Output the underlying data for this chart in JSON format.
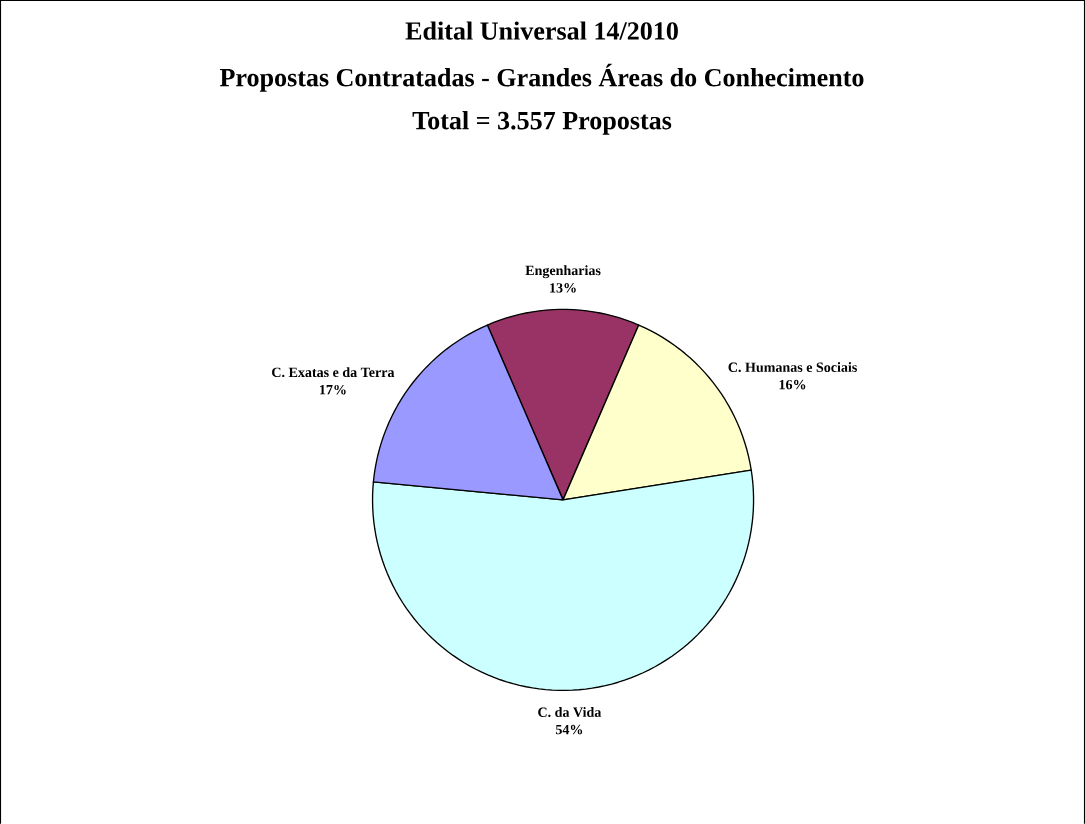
{
  "chart_data": {
    "type": "pie",
    "title": "Edital Universal 14/2010",
    "subtitle": "Propostas Contratadas - Grandes Áreas do Conhecimento",
    "annotations": [
      "Total = 3.557 Propostas"
    ],
    "categories": [
      "Engenharias",
      "C. Humanas e Sociais",
      "C. da Vida",
      "C. Exatas e da Terra"
    ],
    "values": [
      13,
      16,
      54,
      17
    ],
    "value_labels": [
      "13%",
      "16%",
      "54%",
      "17%"
    ],
    "colors": [
      "#993366",
      "#ffffcc",
      "#ccffff",
      "#9999ff"
    ]
  }
}
